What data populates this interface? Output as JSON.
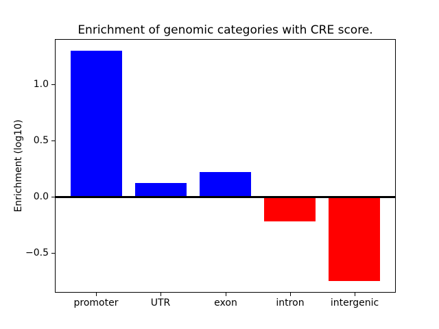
{
  "chart_data": {
    "type": "bar",
    "title": "Enrichment of genomic categories with CRE score.",
    "ylabel": "Enrichment (log10)",
    "xlabel": "",
    "categories": [
      "promoter",
      "UTR",
      "exon",
      "intron",
      "intergenic"
    ],
    "values": [
      1.3,
      0.12,
      0.22,
      -0.22,
      -0.75
    ],
    "bar_colors": [
      "#0000ff",
      "#0000ff",
      "#0000ff",
      "#ff0000",
      "#ff0000"
    ],
    "positive_color": "#0000ff",
    "negative_color": "#ff0000",
    "bar_width": 0.8,
    "xlim": [
      -0.64,
      4.64
    ],
    "ylim": [
      -0.8525,
      1.4025
    ],
    "yticks": [
      1.0,
      0.5,
      0.0,
      -0.5
    ],
    "ytick_labels": [
      "1.0",
      "0.5",
      "0.0",
      "−0.5"
    ],
    "zero_line": true,
    "grid": false,
    "background_color": "#ffffff",
    "axis_color": "#000000",
    "text_color": "#000000"
  }
}
